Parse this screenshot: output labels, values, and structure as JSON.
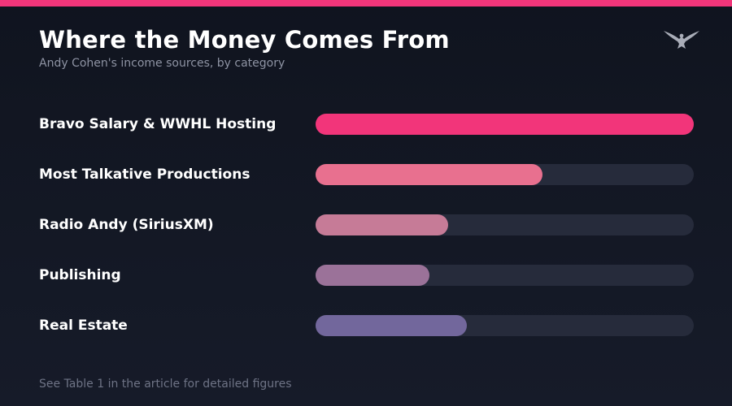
{
  "header": {
    "title": "Where the Money Comes From",
    "subtitle": "Andy Cohen's income sources, by category"
  },
  "accent_color": "#f2357a",
  "logo_icon": "eagle-logo-icon",
  "chart_data": {
    "type": "bar",
    "orientation": "horizontal",
    "title": "Where the Money Comes From",
    "subtitle": "Andy Cohen's income sources, by category",
    "categories": [
      "Bravo Salary & WWHL Hosting",
      "Most Talkative Productions",
      "Radio Andy (SiriusXM)",
      "Publishing",
      "Real Estate"
    ],
    "values": [
      100,
      60,
      35,
      30,
      40
    ],
    "xlim": [
      0,
      100
    ],
    "colors": [
      "#f2357a",
      "#e8708f",
      "#c67b97",
      "#9b7299",
      "#72679c"
    ],
    "grid": false,
    "legend": "none"
  },
  "footer": {
    "note": "See Table 1 in the article for detailed figures"
  }
}
